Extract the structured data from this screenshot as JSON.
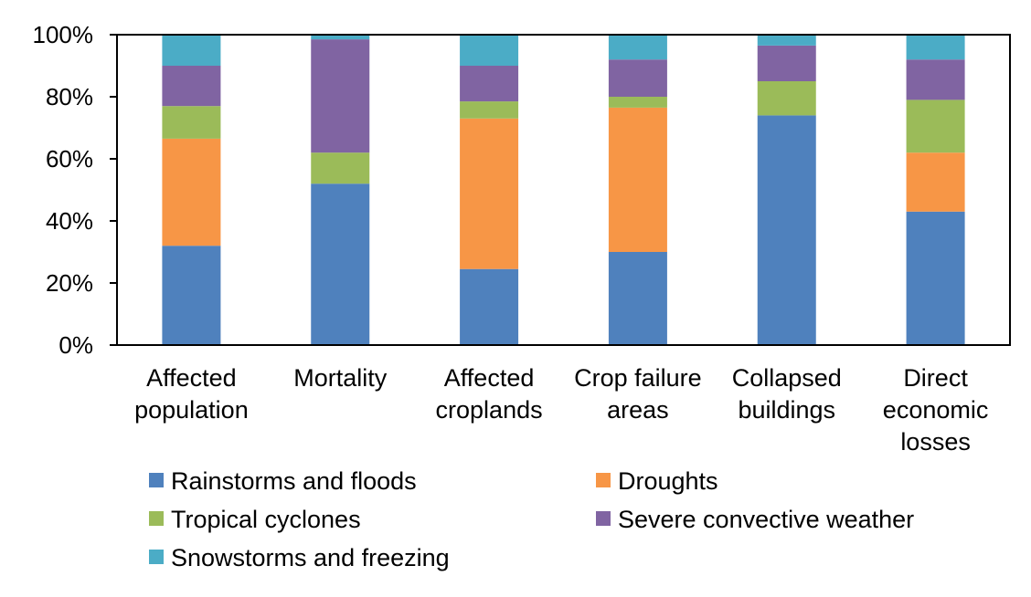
{
  "chart_data": {
    "type": "bar",
    "stacked": true,
    "normalized_100_percent": true,
    "title": "",
    "xlabel": "",
    "ylabel": "",
    "ylim": [
      0,
      100
    ],
    "y_ticks": [
      "0%",
      "20%",
      "40%",
      "60%",
      "80%",
      "100%"
    ],
    "grid": false,
    "legend_position": "bottom",
    "categories": [
      [
        "Affected",
        "population"
      ],
      [
        "Mortality"
      ],
      [
        "Affected",
        "croplands"
      ],
      [
        "Crop failure",
        "areas"
      ],
      [
        "Collapsed",
        "buildings"
      ],
      [
        "Direct",
        "economic",
        "losses"
      ]
    ],
    "series": [
      {
        "name": "Rainstorms and floods",
        "color": "#4F81BD",
        "values": [
          32,
          52,
          24.5,
          30,
          74,
          43
        ]
      },
      {
        "name": "Droughts",
        "color": "#F79646",
        "values": [
          34.5,
          0,
          48.5,
          46.5,
          0,
          19
        ]
      },
      {
        "name": "Tropical cyclones",
        "color": "#9BBB59",
        "values": [
          10.5,
          10,
          5.5,
          3.5,
          11,
          17
        ]
      },
      {
        "name": "Severe convective weather",
        "color": "#8064A2",
        "values": [
          13,
          36.5,
          11.5,
          12,
          11.5,
          13
        ]
      },
      {
        "name": "Snowstorms and freezing",
        "color": "#4BACC6",
        "values": [
          10,
          1.5,
          10,
          8,
          3.5,
          8
        ]
      }
    ]
  }
}
